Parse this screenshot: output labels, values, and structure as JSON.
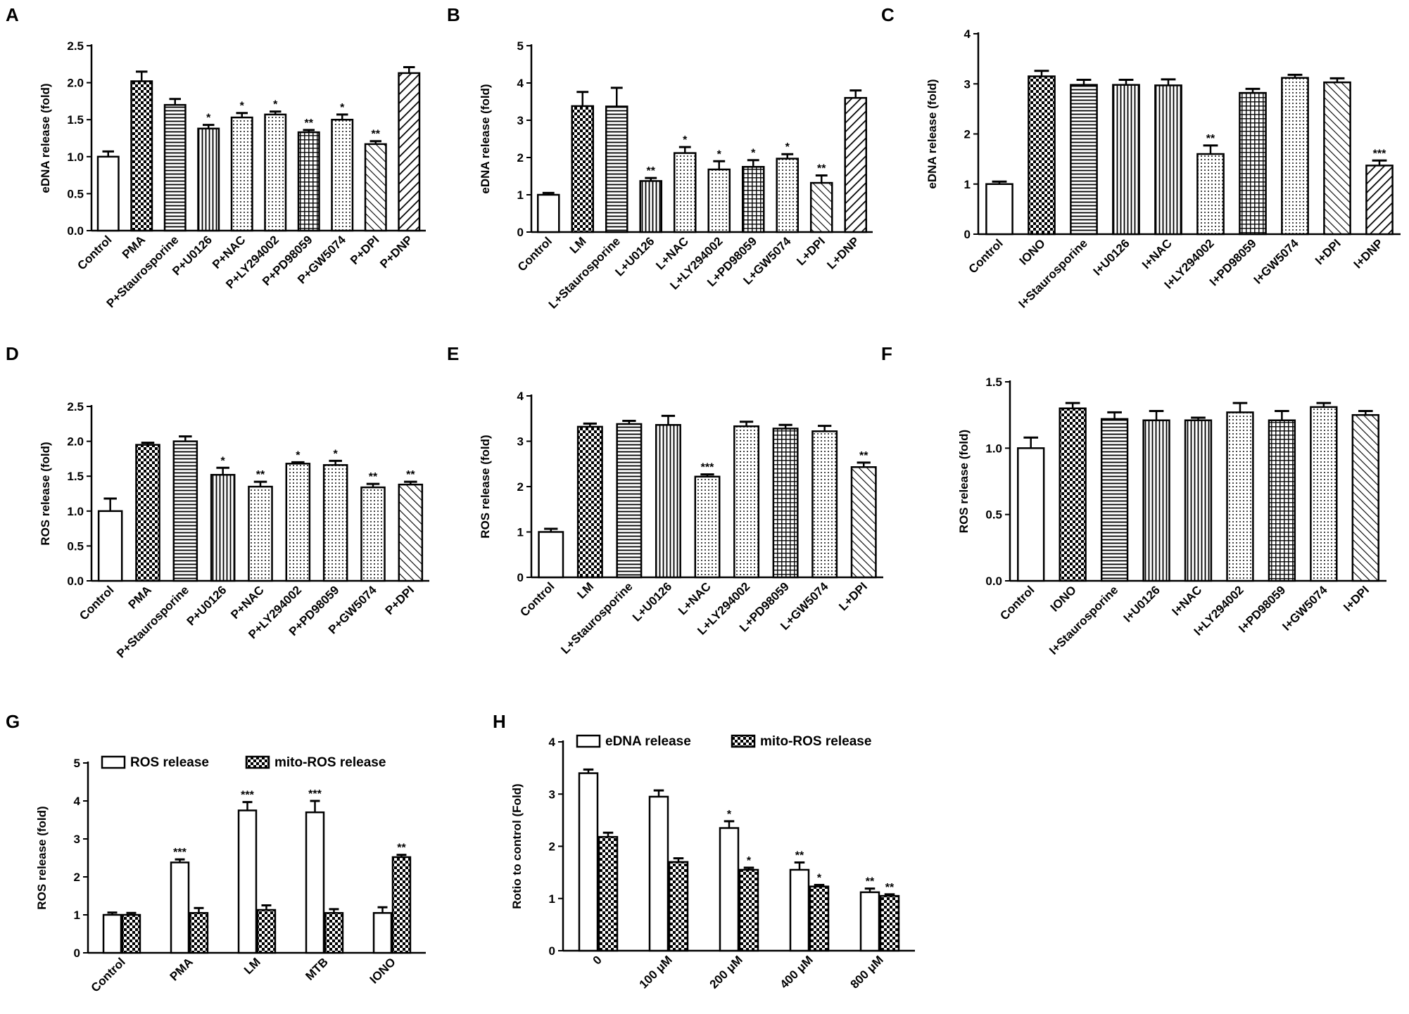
{
  "chart_data": [
    {
      "panel": "A",
      "type": "bar",
      "ylabel": "eDNA release (fold)",
      "ylim": [
        0,
        2.5
      ],
      "yticks": [
        "0.0",
        "0.5",
        "1.0",
        "1.5",
        "2.0",
        "2.5"
      ],
      "categories": [
        "Control",
        "PMA",
        "P+Staurosporine",
        "P+U0126",
        "P+NAC",
        "P+LY294002",
        "P+PD98059",
        "P+GW5074",
        "P+DPI",
        "P+DNP"
      ],
      "values": [
        1.0,
        2.02,
        1.7,
        1.38,
        1.53,
        1.57,
        1.33,
        1.5,
        1.17,
        2.13
      ],
      "errors": [
        0.07,
        0.13,
        0.08,
        0.05,
        0.06,
        0.04,
        0.03,
        0.07,
        0.04,
        0.08
      ],
      "significance": [
        "",
        "",
        "",
        "*",
        "*",
        "*",
        "**",
        "*",
        "**",
        ""
      ],
      "patterns": [
        "none",
        "check",
        "hlines",
        "vlines",
        "dots",
        "dots",
        "grid",
        "dots",
        "diag-back",
        "diag"
      ]
    },
    {
      "panel": "B",
      "type": "bar",
      "ylabel": "eDNA release (fold)",
      "ylim": [
        0,
        5
      ],
      "yticks": [
        "0",
        "1",
        "2",
        "3",
        "4",
        "5"
      ],
      "categories": [
        "Control",
        "LM",
        "L+Staurosporine",
        "L+U0126",
        "L+NAC",
        "L+LY294002",
        "L+PD98059",
        "L+GW5074",
        "L+DPI",
        "L+DNP"
      ],
      "values": [
        1.0,
        3.38,
        3.37,
        1.37,
        2.12,
        1.68,
        1.75,
        1.97,
        1.32,
        3.6
      ],
      "errors": [
        0.05,
        0.38,
        0.5,
        0.08,
        0.16,
        0.22,
        0.18,
        0.12,
        0.2,
        0.2
      ],
      "significance": [
        "",
        "",
        "",
        "**",
        "*",
        "*",
        "*",
        "*",
        "**",
        ""
      ],
      "patterns": [
        "none",
        "check",
        "hlines",
        "vlines",
        "dots",
        "dots",
        "grid",
        "dots",
        "diag-back",
        "diag"
      ]
    },
    {
      "panel": "C",
      "type": "bar",
      "ylabel": "eDNA release (fold)",
      "ylim": [
        0,
        4
      ],
      "yticks": [
        "0",
        "1",
        "2",
        "3",
        "4"
      ],
      "categories": [
        "Control",
        "IONO",
        "I+Staurosporine",
        "I+U0126",
        "I+NAC",
        "I+LY294002",
        "I+PD98059",
        "I+GW5074",
        "I+DPI",
        "I+DNP"
      ],
      "values": [
        1.0,
        3.15,
        2.98,
        2.98,
        2.97,
        1.6,
        2.82,
        3.12,
        3.03,
        1.37
      ],
      "errors": [
        0.05,
        0.11,
        0.1,
        0.1,
        0.12,
        0.17,
        0.08,
        0.06,
        0.08,
        0.1
      ],
      "significance": [
        "",
        "",
        "",
        "",
        "",
        "**",
        "",
        "",
        "",
        "***"
      ],
      "patterns": [
        "none",
        "check",
        "hlines",
        "vlines",
        "vlines",
        "dots",
        "grid",
        "dots",
        "diag-back",
        "diag"
      ]
    },
    {
      "panel": "D",
      "type": "bar",
      "ylabel": "ROS release (fold)",
      "ylim": [
        0,
        2.5
      ],
      "yticks": [
        "0.0",
        "0.5",
        "1.0",
        "1.5",
        "2.0",
        "2.5"
      ],
      "categories": [
        "Control",
        "PMA",
        "P+Staurosporine",
        "P+U0126",
        "P+NAC",
        "P+LY294002",
        "P+PD98059",
        "P+GW5074",
        "P+DPI"
      ],
      "values": [
        1.0,
        1.95,
        2.0,
        1.52,
        1.35,
        1.68,
        1.66,
        1.34,
        1.38
      ],
      "errors": [
        0.18,
        0.03,
        0.07,
        0.1,
        0.07,
        0.02,
        0.06,
        0.05,
        0.04
      ],
      "significance": [
        "",
        "",
        "",
        "*",
        "**",
        "*",
        "*",
        "**",
        "**"
      ],
      "patterns": [
        "none",
        "check",
        "hlines",
        "vlines",
        "dots",
        "dots",
        "dots",
        "dots",
        "diag-back"
      ]
    },
    {
      "panel": "E",
      "type": "bar",
      "ylabel": "ROS release (fold)",
      "ylim": [
        0,
        4
      ],
      "yticks": [
        "0",
        "1",
        "2",
        "3",
        "4"
      ],
      "categories": [
        "Control",
        "LM",
        "L+Staurosporine",
        "L+U0126",
        "L+NAC",
        "L+LY294002",
        "L+PD98059",
        "L+GW5074",
        "L+DPI"
      ],
      "values": [
        1.0,
        3.32,
        3.38,
        3.36,
        2.22,
        3.33,
        3.28,
        3.22,
        2.43
      ],
      "errors": [
        0.07,
        0.07,
        0.07,
        0.2,
        0.05,
        0.1,
        0.08,
        0.12,
        0.1
      ],
      "significance": [
        "",
        "",
        "",
        "",
        "***",
        "",
        "",
        "",
        "**"
      ],
      "patterns": [
        "none",
        "check",
        "hlines",
        "vlines",
        "dots",
        "dots",
        "grid",
        "dots",
        "diag-back"
      ]
    },
    {
      "panel": "F",
      "type": "bar",
      "ylabel": "ROS release (fold)",
      "ylim": [
        0,
        1.5
      ],
      "yticks": [
        "0.0",
        "0.5",
        "1.0",
        "1.5"
      ],
      "categories": [
        "Control",
        "IONO",
        "I+Staurosporine",
        "I+U0126",
        "I+NAC",
        "I+LY294002",
        "I+PD98059",
        "I+GW5074",
        "I+DPI"
      ],
      "values": [
        1.0,
        1.3,
        1.22,
        1.21,
        1.21,
        1.27,
        1.21,
        1.31,
        1.25
      ],
      "errors": [
        0.08,
        0.04,
        0.05,
        0.07,
        0.02,
        0.07,
        0.07,
        0.03,
        0.03
      ],
      "significance": [
        "",
        "",
        "",
        "",
        "",
        "",
        "",
        "",
        ""
      ],
      "patterns": [
        "none",
        "check",
        "hlines",
        "vlines",
        "vlines",
        "dots",
        "grid",
        "dots",
        "diag-back"
      ]
    },
    {
      "panel": "G",
      "type": "bar",
      "ylabel": "ROS release (fold)",
      "ylim": [
        0,
        5
      ],
      "yticks": [
        "0",
        "1",
        "2",
        "3",
        "4",
        "5"
      ],
      "categories": [
        "Control",
        "PMA",
        "LM",
        "MTB",
        "IONO"
      ],
      "series": [
        {
          "name": "ROS release",
          "pattern": "none",
          "values": [
            1.0,
            2.38,
            3.75,
            3.7,
            1.05
          ],
          "errors": [
            0.06,
            0.08,
            0.22,
            0.3,
            0.15
          ],
          "significance": [
            "",
            "***",
            "***",
            "***",
            ""
          ]
        },
        {
          "name": "mito-ROS release",
          "pattern": "check",
          "values": [
            1.0,
            1.05,
            1.13,
            1.05,
            2.52
          ],
          "errors": [
            0.05,
            0.13,
            0.12,
            0.1,
            0.06
          ],
          "significance": [
            "",
            "",
            "",
            "",
            "**"
          ]
        }
      ],
      "legend": "top"
    },
    {
      "panel": "H",
      "type": "bar",
      "ylabel": "Rotio to control (Fold)",
      "ylim": [
        0,
        4
      ],
      "yticks": [
        "0",
        "1",
        "2",
        "3",
        "4"
      ],
      "categories": [
        "0",
        "100 μM",
        "200 μM",
        "400 μM",
        "800 μM"
      ],
      "series": [
        {
          "name": "eDNA release",
          "pattern": "none",
          "values": [
            3.4,
            2.95,
            2.35,
            1.55,
            1.12
          ],
          "errors": [
            0.07,
            0.12,
            0.13,
            0.14,
            0.07
          ],
          "significance": [
            "",
            "",
            "*",
            "**",
            "**"
          ]
        },
        {
          "name": "mito-ROS release",
          "pattern": "check",
          "values": [
            2.18,
            1.7,
            1.55,
            1.23,
            1.05
          ],
          "errors": [
            0.08,
            0.07,
            0.04,
            0.03,
            0.03
          ],
          "significance": [
            "",
            "",
            "*",
            "*",
            "**"
          ]
        }
      ],
      "legend": "top"
    }
  ]
}
